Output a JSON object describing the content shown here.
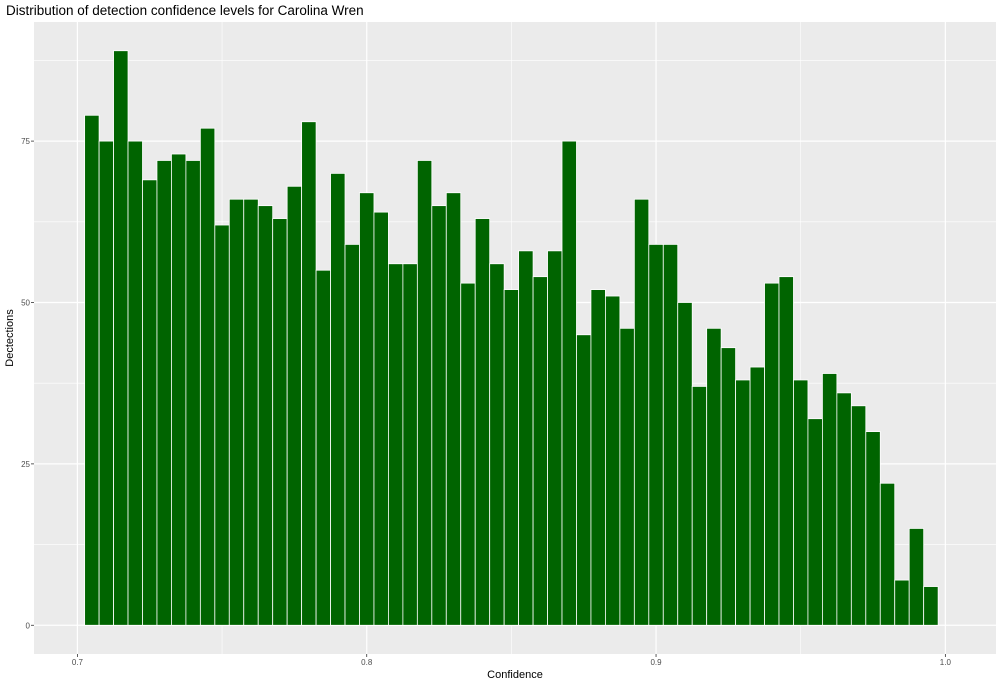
{
  "chart_data": {
    "type": "bar",
    "title": "Distribution of detection confidence levels for Carolina Wren",
    "xlabel": "Confidence",
    "ylabel": "Dectections",
    "bin_width": 0.005,
    "x": [
      0.705,
      0.71,
      0.715,
      0.72,
      0.725,
      0.73,
      0.735,
      0.74,
      0.745,
      0.75,
      0.755,
      0.76,
      0.765,
      0.77,
      0.775,
      0.78,
      0.785,
      0.79,
      0.795,
      0.8,
      0.805,
      0.81,
      0.815,
      0.82,
      0.825,
      0.83,
      0.835,
      0.84,
      0.845,
      0.85,
      0.855,
      0.86,
      0.865,
      0.87,
      0.875,
      0.88,
      0.885,
      0.89,
      0.895,
      0.9,
      0.905,
      0.91,
      0.915,
      0.92,
      0.925,
      0.93,
      0.935,
      0.94,
      0.945,
      0.95,
      0.955,
      0.96,
      0.965,
      0.97,
      0.975,
      0.98,
      0.985,
      0.99,
      0.995
    ],
    "values": [
      79,
      75,
      89,
      75,
      69,
      72,
      73,
      72,
      77,
      62,
      66,
      66,
      65,
      63,
      68,
      78,
      55,
      70,
      59,
      67,
      64,
      56,
      56,
      72,
      65,
      67,
      53,
      63,
      56,
      52,
      58,
      54,
      58,
      75,
      45,
      52,
      51,
      46,
      66,
      59,
      59,
      50,
      37,
      46,
      43,
      38,
      40,
      53,
      54,
      38,
      32,
      39,
      36,
      34,
      30,
      22,
      7,
      15,
      6
    ],
    "xlim": [
      0.685,
      1.0175
    ],
    "ylim": [
      -4.45,
      93.45
    ],
    "x_ticks": [
      0.7,
      0.8,
      0.9,
      1.0
    ],
    "x_tick_labels": [
      "0.7",
      "0.8",
      "0.9",
      "1.0"
    ],
    "y_ticks": [
      0,
      25,
      50,
      75
    ],
    "y_tick_labels": [
      "0",
      "25",
      "50",
      "75"
    ],
    "bar_color": "#006400",
    "bar_edge_color": "#ffffff",
    "panel_background": "#ebebeb",
    "grid": true,
    "legend": "none"
  }
}
